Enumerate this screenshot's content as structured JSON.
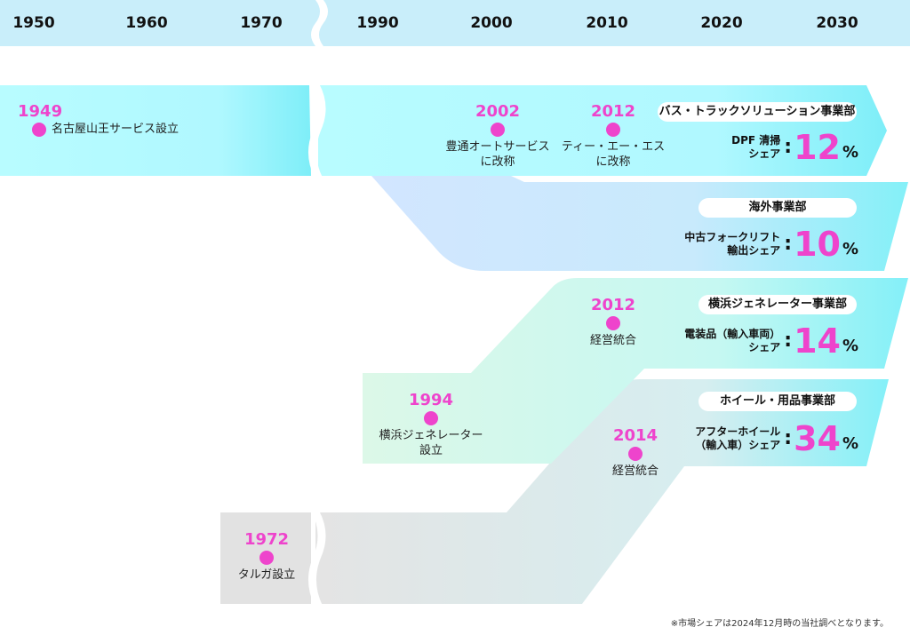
{
  "timeline": {
    "years": [
      "1950",
      "1960",
      "1970",
      "1990",
      "2000",
      "2010",
      "2020",
      "2030"
    ]
  },
  "events": [
    {
      "year": "1949",
      "text": "名古屋山王サービス設立"
    },
    {
      "year": "2002",
      "text": "豊通オートサービス\nに改称"
    },
    {
      "year": "2012",
      "text": "ティー・エー・エス\nに改称"
    },
    {
      "year": "2012",
      "text": "経営統合"
    },
    {
      "year": "1994",
      "text": "横浜ジェネレーター\n設立"
    },
    {
      "year": "2014",
      "text": "経営統合"
    },
    {
      "year": "1972",
      "text": "タルガ設立"
    }
  ],
  "divisions": [
    {
      "name": "バス・トラックソリューション事業部",
      "share_label": "DPF 清掃\nシェア",
      "share_value": "12",
      "unit": "%"
    },
    {
      "name": "海外事業部",
      "share_label": "中古フォークリフト\n輸出シェア",
      "share_value": "10",
      "unit": "%"
    },
    {
      "name": "横浜ジェネレーター事業部",
      "share_label": "電装品（輸入車両）\nシェア",
      "share_value": "14",
      "unit": "%"
    },
    {
      "name": "ホイール・用品事業部",
      "share_label": "アフターホイール\n（輸入車）シェア",
      "share_value": "34",
      "unit": "%"
    }
  ],
  "footnote": "※市場シェアは2024年12月時の当社調べとなります。",
  "colors": {
    "header": "#c9eefa",
    "cyan": "#b5fbff",
    "cyan_end": "#8af0f8",
    "blue": "#cfe6ff",
    "green": "#dcf8e8",
    "gray": "#e2e2e2",
    "accent": "#ee44cc"
  }
}
